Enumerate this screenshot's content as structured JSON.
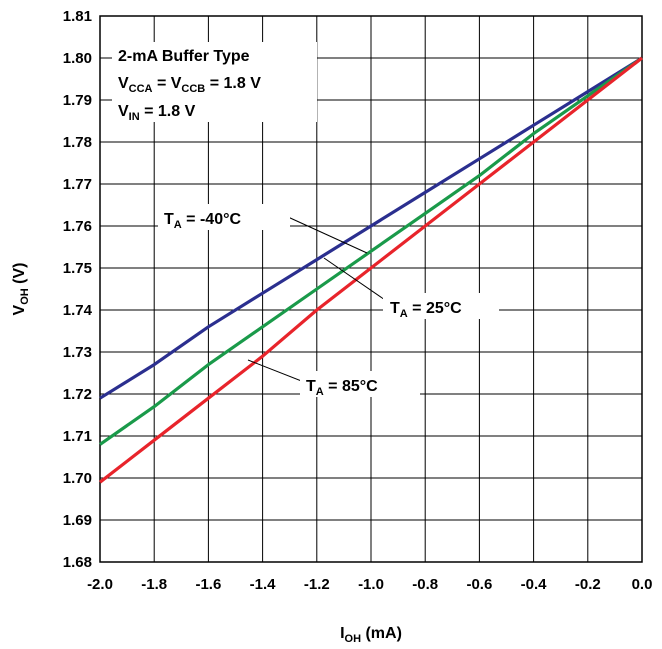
{
  "chart_data": {
    "type": "line",
    "xlabel": {
      "main": "I",
      "sub": "OH",
      "rest": " (mA)"
    },
    "ylabel": {
      "main": "V",
      "sub": "OH",
      "rest": " (V)"
    },
    "xlim": [
      -2.0,
      0.0
    ],
    "ylim": [
      1.68,
      1.81
    ],
    "x_ticks": [
      "-2.0",
      "-1.8",
      "-1.6",
      "-1.4",
      "-1.2",
      "-1.0",
      "-0.8",
      "-0.6",
      "-0.4",
      "-0.2",
      "0.0"
    ],
    "y_ticks": [
      "1.68",
      "1.69",
      "1.70",
      "1.71",
      "1.72",
      "1.73",
      "1.74",
      "1.75",
      "1.76",
      "1.77",
      "1.78",
      "1.79",
      "1.80",
      "1.81"
    ],
    "grid": true,
    "x": [
      -2.0,
      -1.8,
      -1.6,
      -1.4,
      -1.2,
      -1.0,
      -0.8,
      -0.6,
      -0.4,
      -0.2,
      0.0
    ],
    "series": [
      {
        "name": "T_A = -40°C",
        "color": "#2b2f8f",
        "values": [
          1.719,
          1.727,
          1.736,
          1.744,
          1.752,
          1.76,
          1.768,
          1.776,
          1.784,
          1.792,
          1.8
        ]
      },
      {
        "name": "T_A = 25°C",
        "color": "#1a9a4a",
        "values": [
          1.708,
          1.717,
          1.727,
          1.736,
          1.745,
          1.754,
          1.763,
          1.772,
          1.782,
          1.791,
          1.8
        ]
      },
      {
        "name": "T_A = 85°C",
        "color": "#e8242b",
        "values": [
          1.699,
          1.709,
          1.719,
          1.729,
          1.74,
          1.75,
          1.76,
          1.77,
          1.78,
          1.79,
          1.8
        ]
      }
    ],
    "box": {
      "line1": "2-mA Buffer Type",
      "line2": [
        {
          "t": "V",
          "sub": false
        },
        {
          "t": "CCA",
          "sub": true
        },
        {
          "t": " = V",
          "sub": false
        },
        {
          "t": "CCB",
          "sub": true
        },
        {
          "t": " = 1.8 V",
          "sub": false
        }
      ],
      "line3": [
        {
          "t": "V",
          "sub": false
        },
        {
          "t": "IN",
          "sub": true
        },
        {
          "t": " = 1.8 V",
          "sub": false
        }
      ]
    },
    "annotations": [
      {
        "series": 0,
        "parts": [
          {
            "t": "T",
            "sub": false
          },
          {
            "t": "A",
            "sub": true
          },
          {
            "t": " = -40°C",
            "sub": false
          }
        ]
      },
      {
        "series": 1,
        "parts": [
          {
            "t": "T",
            "sub": false
          },
          {
            "t": "A",
            "sub": true
          },
          {
            "t": " = 25°C",
            "sub": false
          }
        ]
      },
      {
        "series": 2,
        "parts": [
          {
            "t": "T",
            "sub": false
          },
          {
            "t": "A",
            "sub": true
          },
          {
            "t": " = 85°C",
            "sub": false
          }
        ]
      }
    ]
  }
}
